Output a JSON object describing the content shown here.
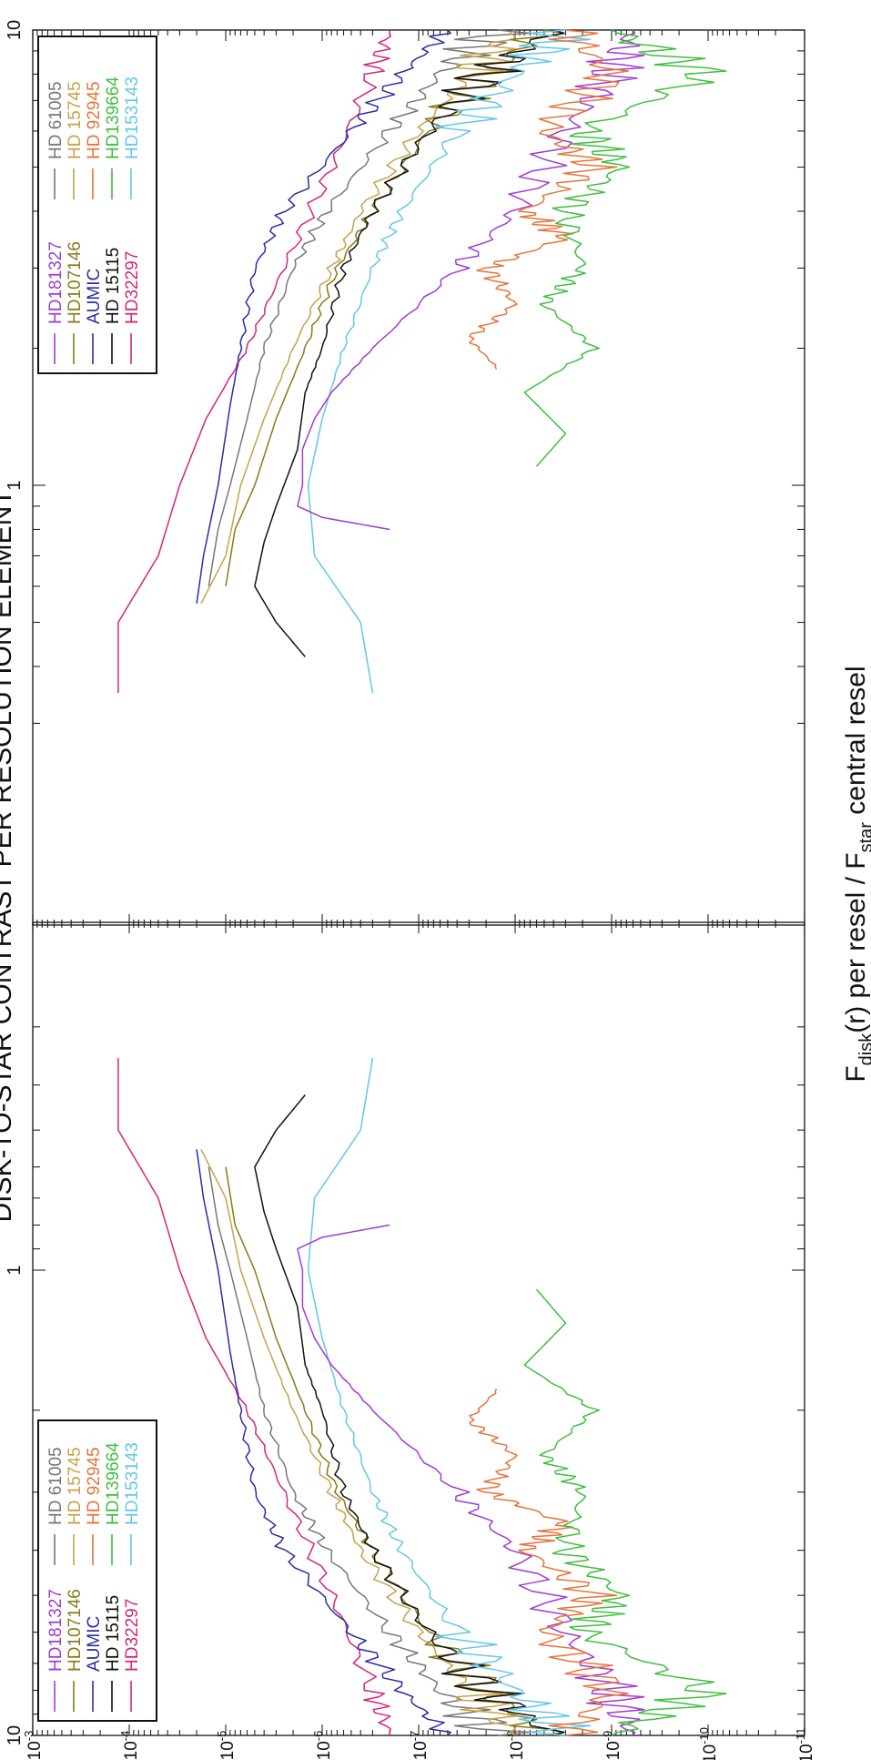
{
  "title": "DISK-TO-STAR CONTRAST PER RESOLUTION ELEMENT",
  "ylabel_parts": {
    "F": "F",
    "disk_sub": "disk",
    "mid": "(r) per resel / F",
    "star_sub": "star",
    "end": " central resel"
  },
  "y_tick_labels": [
    {
      "mant": "10",
      "exp": "-3"
    },
    {
      "mant": "10",
      "exp": "-4"
    },
    {
      "mant": "10",
      "exp": "-5"
    },
    {
      "mant": "10",
      "exp": "-6"
    },
    {
      "mant": "10",
      "exp": "-7"
    },
    {
      "mant": "10",
      "exp": "-8"
    },
    {
      "mant": "10",
      "exp": "-9"
    },
    {
      "mant": "10",
      "exp": "-10"
    },
    {
      "mant": "10",
      "exp": "-11"
    }
  ],
  "x_tick_labels": [
    "10",
    "1",
    "1",
    "10"
  ],
  "legend": {
    "col1": [
      {
        "label": "HD181327",
        "color": "#a13bd1"
      },
      {
        "label": "HD107146",
        "color": "#8a7a18"
      },
      {
        "label": "AUMIC",
        "color": "#2c2ca8"
      },
      {
        "label": "HD 15115",
        "color": "#111111"
      },
      {
        "label": "HD32297",
        "color": "#d6247a"
      }
    ],
    "col2": [
      {
        "label": "HD 61005",
        "color": "#777777"
      },
      {
        "label": "HD 15745",
        "color": "#c9a04a"
      },
      {
        "label": "HD 92945",
        "color": "#e8733a"
      },
      {
        "label": "HD139664",
        "color": "#3fbf3f"
      },
      {
        "label": "HD153143",
        "color": "#63c7e8"
      }
    ]
  },
  "chart_data": [
    {
      "type": "line",
      "panel": "left",
      "title": "DISK-TO-STAR CONTRAST PER RESOLUTION ELEMENT",
      "x_scale": "log",
      "x_reversed": true,
      "x_range": [
        10,
        0.25
      ],
      "y_scale": "log",
      "y_range": [
        1e-11,
        0.001
      ],
      "ylabel": "Fdisk(r) per resel / Fstar central resel",
      "series": [
        {
          "name": "HD32297",
          "color": "#d6247a",
          "x": [
            0.35,
            0.5,
            0.7,
            1,
            1.4,
            2,
            3,
            5,
            8,
            10
          ],
          "y": [
            0.00013,
            0.00013,
            5e-05,
            3e-05,
            1.6e-05,
            6e-06,
            2.5e-06,
            8e-07,
            3e-07,
            2e-07
          ]
        },
        {
          "name": "AUMIC",
          "color": "#2c2ca8",
          "x": [
            0.55,
            0.7,
            1,
            1.5,
            2,
            3,
            4,
            6,
            8,
            10
          ],
          "y": [
            2e-05,
            1.7e-05,
            1.2e-05,
            9e-06,
            7e-06,
            5e-06,
            2.5e-06,
            5e-07,
            1.5e-07,
            5e-08
          ]
        },
        {
          "name": "HD 61005",
          "color": "#777777",
          "x": [
            0.6,
            0.8,
            1,
            1.4,
            2,
            3,
            4,
            6,
            8,
            10
          ],
          "y": [
            1.5e-05,
            1.2e-05,
            9e-06,
            6e-06,
            4e-06,
            2e-06,
            9e-07,
            2e-07,
            6e-08,
            1.5e-08
          ]
        },
        {
          "name": "HD 15745",
          "color": "#c9a04a",
          "x": [
            0.55,
            0.7,
            1,
            1.4,
            2,
            3,
            4,
            6,
            8,
            10
          ],
          "y": [
            1.8e-05,
            1e-05,
            7e-06,
            4e-06,
            2e-06,
            8e-07,
            4e-07,
            1e-07,
            3e-08,
            1e-08
          ]
        },
        {
          "name": "HD107146",
          "color": "#8a7a18",
          "x": [
            0.6,
            0.8,
            1,
            1.4,
            2,
            3,
            4,
            6,
            8,
            10
          ],
          "y": [
            1e-05,
            8e-06,
            5e-06,
            3e-06,
            1.5e-06,
            7e-07,
            3e-07,
            8e-08,
            2e-08,
            5e-09
          ]
        },
        {
          "name": "HD 15115",
          "color": "#111111",
          "x": [
            0.42,
            0.5,
            0.6,
            0.75,
            0.9,
            1.2,
            1.6,
            2,
            3,
            4,
            6,
            8,
            10
          ],
          "y": [
            1.5e-06,
            3e-06,
            5e-06,
            4e-06,
            3e-06,
            1.8e-06,
            1.5e-06,
            1e-06,
            6e-07,
            3e-07,
            8e-08,
            2e-08,
            4e-09
          ]
        },
        {
          "name": "HD153143",
          "color": "#63c7e8",
          "x": [
            0.35,
            0.5,
            0.7,
            1,
            1.4,
            2,
            3,
            4,
            6,
            8,
            10
          ],
          "y": [
            3e-07,
            4e-07,
            1.2e-06,
            1.4e-06,
            1e-06,
            6e-07,
            3e-07,
            1.5e-07,
            4e-08,
            1e-08,
            3e-09
          ]
        },
        {
          "name": "HD181327",
          "color": "#a13bd1",
          "x": [
            0.8,
            0.85,
            0.9,
            1,
            1.2,
            1.4,
            1.6,
            2,
            3,
            4,
            6,
            8,
            10
          ],
          "y": [
            2e-07,
            1e-06,
            1.8e-06,
            1.6e-06,
            1.6e-06,
            1.2e-06,
            8e-07,
            3e-07,
            4e-08,
            1e-08,
            3e-09,
            1e-09,
            6e-10
          ]
        },
        {
          "name": "HD 92945",
          "color": "#e8733a",
          "x": [
            1.8,
            2.1,
            2.5,
            3,
            3.5,
            4,
            5,
            6,
            8,
            10
          ],
          "y": [
            1.5e-08,
            3e-08,
            1e-08,
            2e-08,
            3e-09,
            8e-09,
            1.5e-09,
            5e-09,
            1e-09,
            3e-09
          ]
        },
        {
          "name": "HD139664",
          "color": "#3fbf3f",
          "x": [
            1.1,
            1.3,
            1.6,
            2,
            2.5,
            3,
            4,
            5,
            6,
            8,
            10
          ],
          "y": [
            6e-09,
            3e-09,
            8e-09,
            1.5e-09,
            5e-09,
            2e-09,
            3e-09,
            8e-10,
            2e-09,
            1e-10,
            1e-09
          ]
        }
      ]
    },
    {
      "type": "line",
      "panel": "right",
      "x_scale": "log",
      "x_range": [
        0.25,
        10
      ],
      "y_scale": "log",
      "y_range": [
        1e-11,
        0.001
      ],
      "series": [
        {
          "name": "HD32297",
          "color": "#d6247a",
          "x": [
            0.35,
            0.5,
            0.7,
            1,
            1.4,
            2,
            3,
            5,
            8,
            10
          ],
          "y": [
            0.00013,
            0.00013,
            5e-05,
            3e-05,
            1.6e-05,
            6e-06,
            2.5e-06,
            8e-07,
            3e-07,
            2e-07
          ]
        },
        {
          "name": "AUMIC",
          "color": "#2c2ca8",
          "x": [
            0.55,
            0.7,
            1,
            1.5,
            2,
            3,
            4,
            6,
            8,
            10
          ],
          "y": [
            2e-05,
            1.7e-05,
            1.2e-05,
            9e-06,
            7e-06,
            5e-06,
            2.5e-06,
            5e-07,
            1.5e-07,
            5e-08
          ]
        },
        {
          "name": "HD 61005",
          "color": "#777777",
          "x": [
            0.6,
            0.8,
            1,
            1.4,
            2,
            3,
            4,
            6,
            8,
            10
          ],
          "y": [
            1.5e-05,
            1.2e-05,
            9e-06,
            6e-06,
            4e-06,
            2e-06,
            9e-07,
            2e-07,
            6e-08,
            1.5e-08
          ]
        },
        {
          "name": "HD 15745",
          "color": "#c9a04a",
          "x": [
            0.55,
            0.7,
            1,
            1.4,
            2,
            3,
            4,
            6,
            8,
            10
          ],
          "y": [
            1.8e-05,
            1e-05,
            7e-06,
            4e-06,
            2e-06,
            8e-07,
            4e-07,
            1e-07,
            3e-08,
            1e-08
          ]
        },
        {
          "name": "HD107146",
          "color": "#8a7a18",
          "x": [
            0.6,
            0.8,
            1,
            1.4,
            2,
            3,
            4,
            6,
            8,
            10
          ],
          "y": [
            1e-05,
            8e-06,
            5e-06,
            3e-06,
            1.5e-06,
            7e-07,
            3e-07,
            8e-08,
            2e-08,
            5e-09
          ]
        },
        {
          "name": "HD 15115",
          "color": "#111111",
          "x": [
            0.42,
            0.5,
            0.6,
            0.75,
            0.9,
            1.2,
            1.6,
            2,
            3,
            4,
            6,
            8,
            10
          ],
          "y": [
            1.5e-06,
            3e-06,
            5e-06,
            4e-06,
            3e-06,
            1.8e-06,
            1.5e-06,
            1e-06,
            6e-07,
            3e-07,
            8e-08,
            2e-08,
            4e-09
          ]
        },
        {
          "name": "HD153143",
          "color": "#63c7e8",
          "x": [
            0.35,
            0.5,
            0.7,
            1,
            1.4,
            2,
            3,
            4,
            6,
            8,
            10
          ],
          "y": [
            3e-07,
            4e-07,
            1.2e-06,
            1.4e-06,
            1e-06,
            6e-07,
            3e-07,
            1.5e-07,
            4e-08,
            1e-08,
            3e-09
          ]
        },
        {
          "name": "HD181327",
          "color": "#a13bd1",
          "x": [
            0.8,
            0.85,
            0.9,
            1,
            1.2,
            1.4,
            1.6,
            2,
            3,
            4,
            6,
            8,
            10
          ],
          "y": [
            2e-07,
            1e-06,
            1.8e-06,
            1.6e-06,
            1.6e-06,
            1.2e-06,
            8e-07,
            3e-07,
            4e-08,
            1e-08,
            3e-09,
            1e-09,
            6e-10
          ]
        },
        {
          "name": "HD 92945",
          "color": "#e8733a",
          "x": [
            1.8,
            2.1,
            2.5,
            3,
            3.5,
            4,
            5,
            6,
            8,
            10
          ],
          "y": [
            1.5e-08,
            3e-08,
            1e-08,
            2e-08,
            3e-09,
            8e-09,
            1.5e-09,
            5e-09,
            1e-09,
            3e-09
          ]
        },
        {
          "name": "HD139664",
          "color": "#3fbf3f",
          "x": [
            1.1,
            1.3,
            1.6,
            2,
            2.5,
            3,
            4,
            5,
            6,
            8,
            10
          ],
          "y": [
            6e-09,
            3e-09,
            8e-09,
            1.5e-09,
            5e-09,
            2e-09,
            3e-09,
            8e-10,
            2e-09,
            1e-10,
            1e-09
          ]
        }
      ]
    }
  ]
}
